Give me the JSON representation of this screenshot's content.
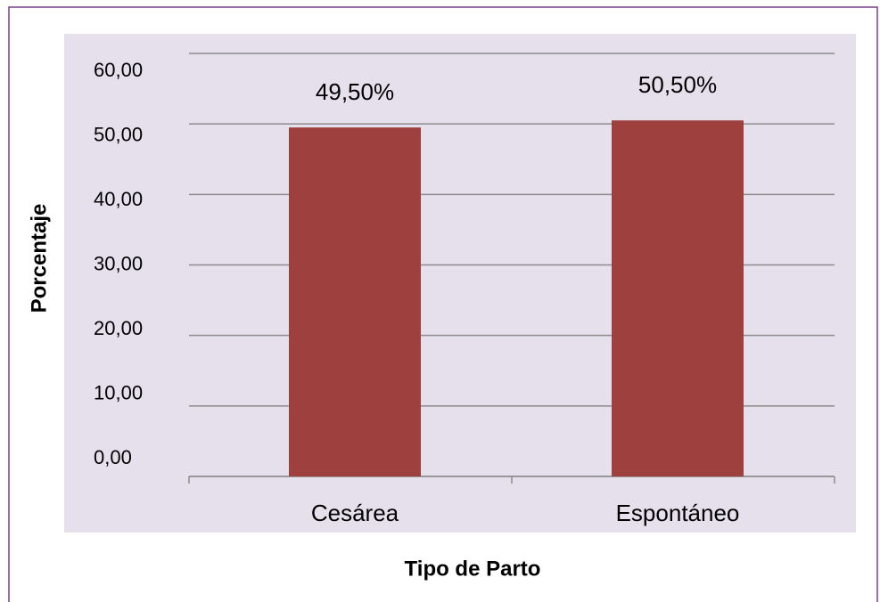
{
  "chart_data": {
    "type": "bar",
    "categories": [
      "Cesárea",
      "Espontáneo"
    ],
    "values": [
      49.5,
      50.5
    ],
    "value_labels": [
      "49,50%",
      "50,50%"
    ],
    "color": "#9e413e",
    "xlabel": "Tipo de Parto",
    "ylabel": "Porcentaje",
    "ylim": [
      0,
      60
    ],
    "yticks": [
      {
        "value": 0,
        "label": "0,00"
      },
      {
        "value": 10,
        "label": "10,00"
      },
      {
        "value": 20,
        "label": "20,00"
      },
      {
        "value": 30,
        "label": "30,00"
      },
      {
        "value": 40,
        "label": "40,00"
      },
      {
        "value": 50,
        "label": "50,00"
      },
      {
        "value": 60,
        "label": "60,00"
      }
    ],
    "grid": true
  }
}
